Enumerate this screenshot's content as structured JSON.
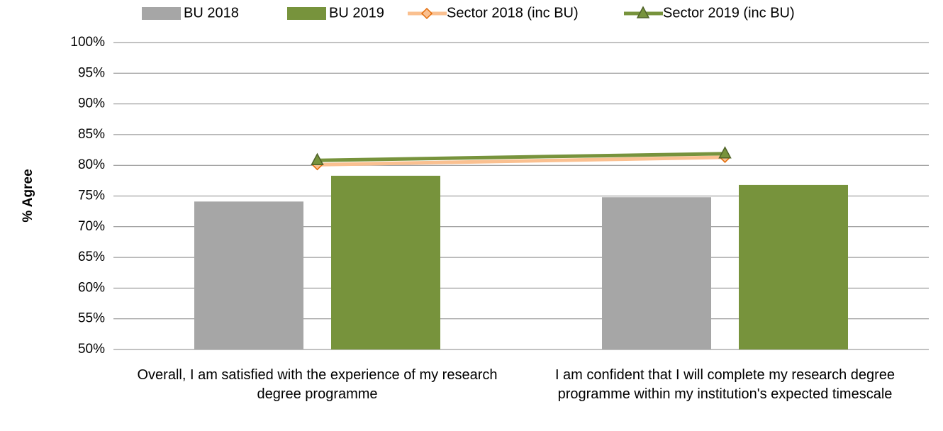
{
  "chart_data": {
    "type": "bar",
    "y_label": "% Agree",
    "categories": [
      "Overall, I am satisfied with the experience of my research degree programme",
      "I am confident that I will complete my research degree programme within my institution's expected timescale"
    ],
    "series": [
      {
        "name": "BU 2018",
        "type": "bar",
        "color": "#a6a6a6",
        "values": [
          74.1,
          74.8
        ]
      },
      {
        "name": "BU 2019",
        "type": "bar",
        "color": "#77933c",
        "values": [
          78.3,
          76.8
        ]
      },
      {
        "name": "Sector 2018 (inc BU)",
        "type": "line",
        "marker": "diamond",
        "color": "#fac090",
        "marker_edge": "#e36c09",
        "values": [
          80.1,
          81.3
        ]
      },
      {
        "name": "Sector 2019 (inc BU)",
        "type": "line",
        "marker": "triangle",
        "color": "#77933c",
        "marker_edge": "#4f6228",
        "values": [
          80.8,
          81.9
        ]
      }
    ],
    "ylim": [
      50,
      100
    ],
    "yticks": [
      {
        "value": 50,
        "label": "50%"
      },
      {
        "value": 55,
        "label": "55%"
      },
      {
        "value": 60,
        "label": "60%"
      },
      {
        "value": 65,
        "label": "65%"
      },
      {
        "value": 70,
        "label": "70%"
      },
      {
        "value": 75,
        "label": "75%"
      },
      {
        "value": 80,
        "label": "80%"
      },
      {
        "value": 85,
        "label": "85%"
      },
      {
        "value": 90,
        "label": "90%"
      },
      {
        "value": 95,
        "label": "95%"
      },
      {
        "value": 100,
        "label": "100%"
      }
    ],
    "grid": true,
    "legend": "top"
  }
}
